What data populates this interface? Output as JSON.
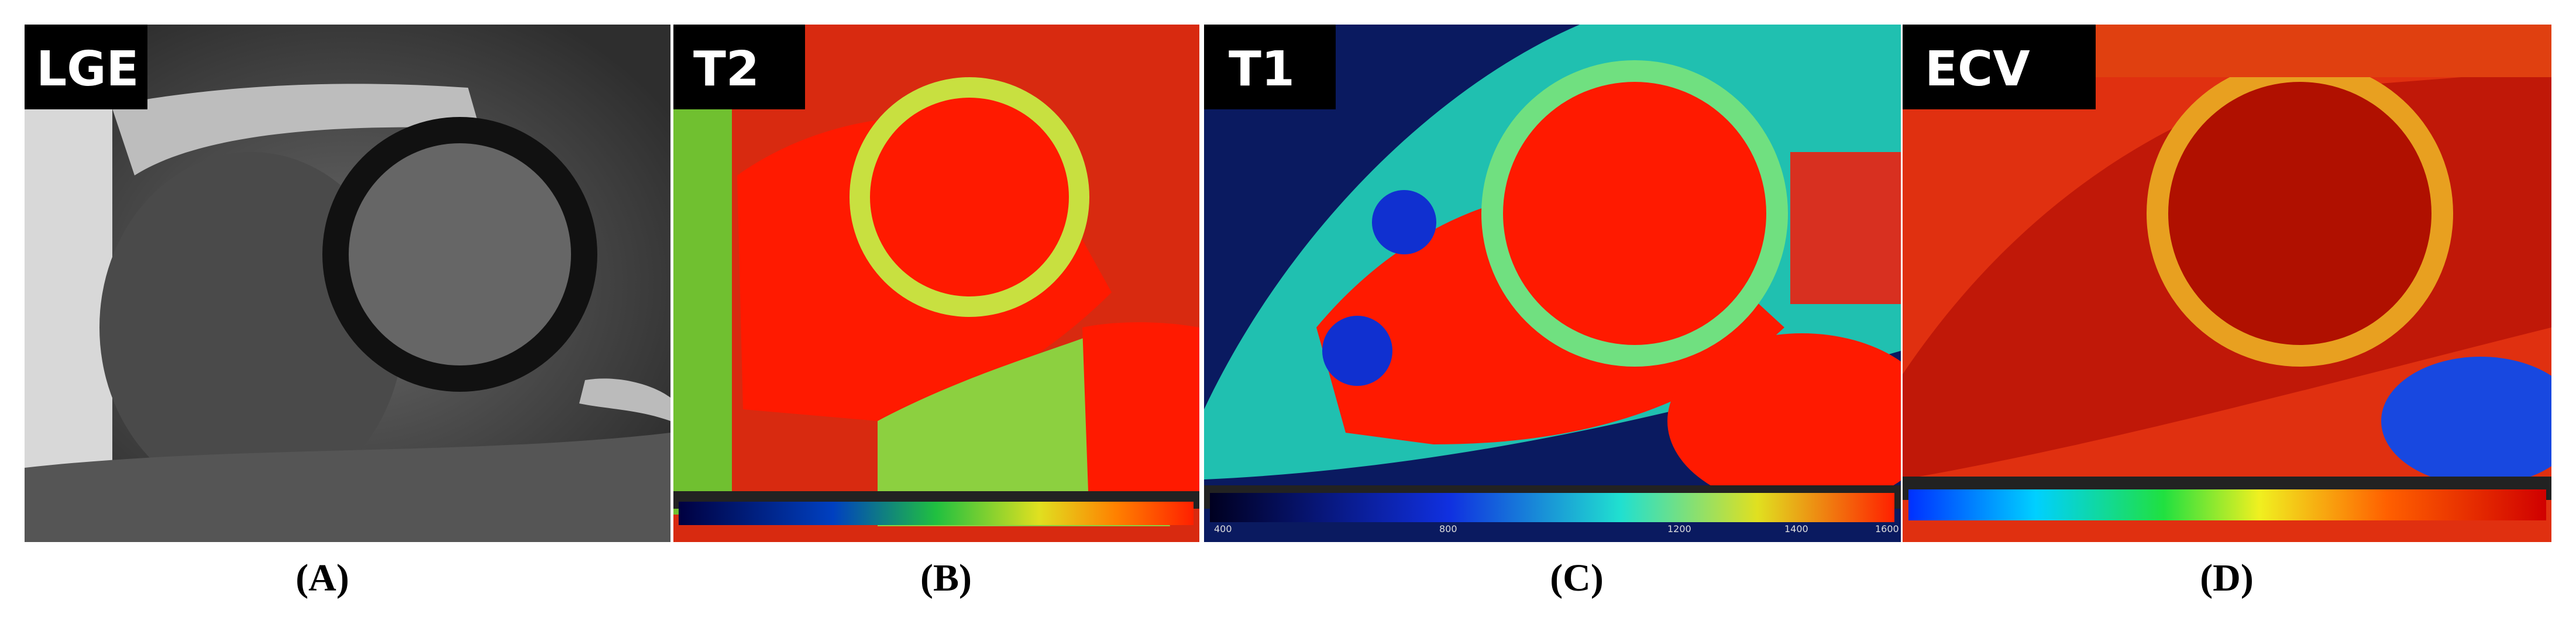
{
  "panels": [
    {
      "tag": "LGE",
      "caption": "(A)"
    },
    {
      "tag": "T2",
      "caption": "(B)"
    },
    {
      "tag": "T1",
      "caption": "(C)",
      "colorbar_labels": [
        "400",
        "800",
        "1200",
        "1400",
        "1600"
      ]
    },
    {
      "tag": "ECV",
      "caption": "(D)"
    }
  ]
}
